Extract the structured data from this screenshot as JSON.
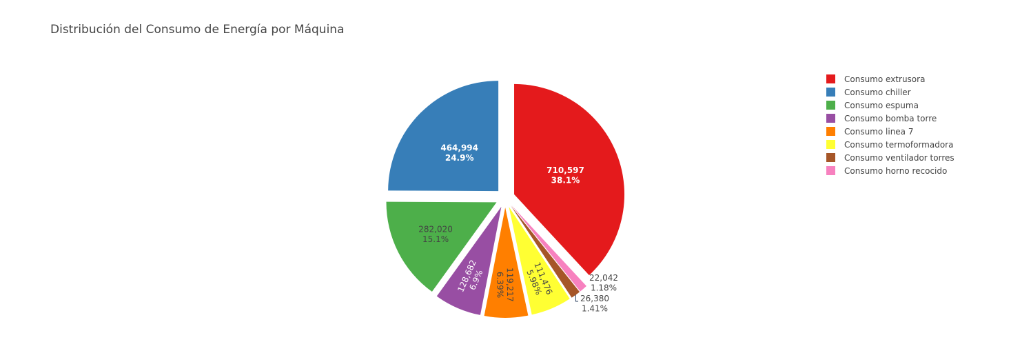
{
  "chart_data": {
    "type": "pie",
    "title": "Distribución del Consumo de Energía por Máquina",
    "legend_position": "top-right",
    "slices": [
      {
        "name": "Consumo extrusora",
        "value": 710597,
        "value_label": "710,597",
        "percent_label": "38.1%",
        "color": "#e41a1c",
        "text_color": "#ffffff",
        "bold": true
      },
      {
        "name": "Consumo horno recocido",
        "value": 22042,
        "value_label": "22,042",
        "percent_label": "1.18%",
        "color": "#f781bf",
        "text_color": "#444444",
        "bold": false
      },
      {
        "name": "Consumo ventilador torres",
        "value": 26380,
        "value_label": "26,380",
        "percent_label": "1.41%",
        "color": "#a65628",
        "text_color": "#444444",
        "bold": false
      },
      {
        "name": "Consumo termoformadora",
        "value": 111476,
        "value_label": "111,476",
        "percent_label": "5.98%",
        "color": "#ffff33",
        "text_color": "#444444",
        "bold": false
      },
      {
        "name": "Consumo linea 7",
        "value": 119217,
        "value_label": "119,217",
        "percent_label": "6.39%",
        "color": "#ff7f00",
        "text_color": "#444444",
        "bold": false
      },
      {
        "name": "Consumo bomba torre",
        "value": 128682,
        "value_label": "128,682",
        "percent_label": "6.9%",
        "color": "#984ea3",
        "text_color": "#ffffff",
        "bold": false
      },
      {
        "name": "Consumo espuma",
        "value": 282020,
        "value_label": "282,020",
        "percent_label": "15.1%",
        "color": "#4daf4a",
        "text_color": "#444444",
        "bold": false
      },
      {
        "name": "Consumo chiller",
        "value": 464994,
        "value_label": "464,994",
        "percent_label": "24.9%",
        "color": "#377eb8",
        "text_color": "#ffffff",
        "bold": true
      }
    ],
    "legend": [
      {
        "name": "Consumo extrusora",
        "color": "#e41a1c"
      },
      {
        "name": "Consumo chiller",
        "color": "#377eb8"
      },
      {
        "name": "Consumo espuma",
        "color": "#4daf4a"
      },
      {
        "name": "Consumo bomba torre",
        "color": "#984ea3"
      },
      {
        "name": "Consumo linea 7",
        "color": "#ff7f00"
      },
      {
        "name": "Consumo termoformadora",
        "color": "#ffff33"
      },
      {
        "name": "Consumo ventilador torres",
        "color": "#a65628"
      },
      {
        "name": "Consumo horno recocido",
        "color": "#f781bf"
      }
    ]
  }
}
